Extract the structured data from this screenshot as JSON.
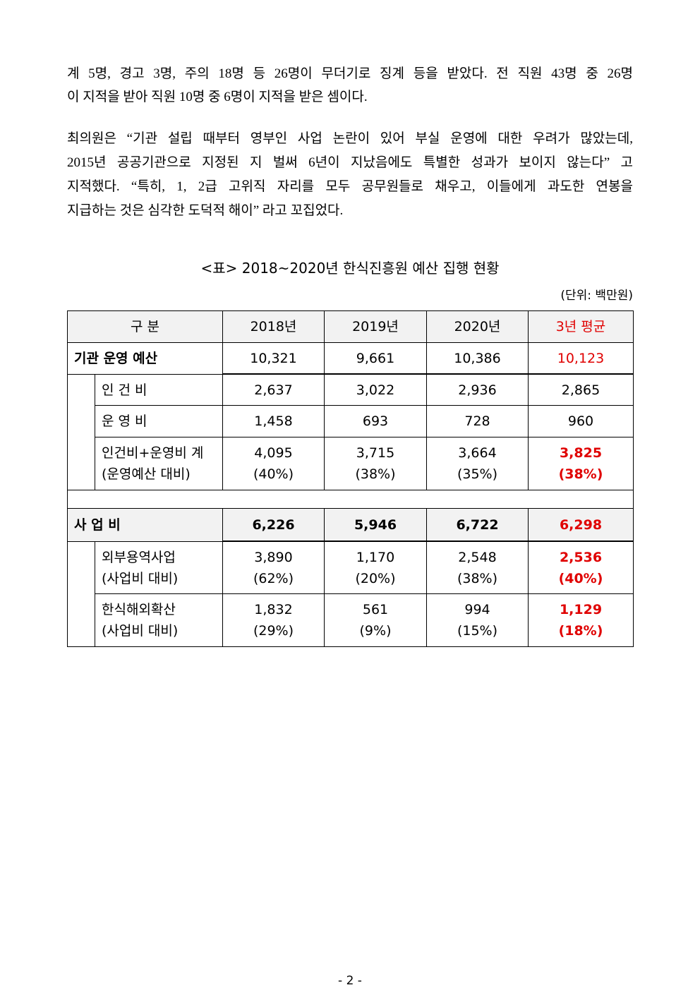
{
  "body": {
    "paragraphs": [
      {
        "lines": [
          "계 5명, 경고 3명, 주의 18명 등 26명이 무더기로 징계 등을 받았다. 전 직원 43명 중 26명",
          "이 지적을 받아 직원 10명 중 6명이 지적을 받은 셈이다."
        ]
      },
      {
        "lines": [
          "최의원은 “기관 설립 때부터 영부인 사업 논란이 있어 부실 운영에 대한 우려가 많았는데,",
          "2015년 공공기관으로 지정된 지 벌써 6년이 지났음에도 특별한 성과가 보이지 않는다” 고",
          "지적했다. “특히, 1, 2급 고위직 자리를 모두 공무원들로 채우고, 이들에게 과도한 연봉을",
          "지급하는 것은 심각한 도덕적 해이” 라고 꼬집었다."
        ]
      }
    ]
  },
  "table": {
    "caption": "<표> 2018~2020년 한식진흥원 예산 집행 현황",
    "unit": "(단위: 백만원)",
    "header": [
      "구 분",
      "2018년",
      "2019년",
      "2020년",
      "3년 평균"
    ],
    "rows": [
      {
        "label": [
          "기관 운영 예산"
        ],
        "cells": [
          [
            "10,321"
          ],
          [
            "9,661"
          ],
          [
            "10,386"
          ],
          [
            "10,123"
          ]
        ]
      },
      {
        "label": [
          "인 건 비"
        ],
        "cells": [
          [
            "2,637"
          ],
          [
            "3,022"
          ],
          [
            "2,936"
          ],
          [
            "2,865"
          ]
        ]
      },
      {
        "label": [
          "운 영 비"
        ],
        "cells": [
          [
            "1,458"
          ],
          [
            "693"
          ],
          [
            "728"
          ],
          [
            "960"
          ]
        ]
      },
      {
        "label": [
          "인건비+운영비 계",
          "(운영예산 대비)"
        ],
        "cells": [
          [
            "4,095",
            "(40%)"
          ],
          [
            "3,715",
            "(38%)"
          ],
          [
            "3,664",
            "(35%)"
          ],
          [
            "3,825",
            "(38%)"
          ]
        ]
      },
      {
        "label": [
          "사 업 비"
        ],
        "cells": [
          [
            "6,226"
          ],
          [
            "5,946"
          ],
          [
            "6,722"
          ],
          [
            "6,298"
          ]
        ]
      },
      {
        "label": [
          "외부용역사업",
          "(사업비 대비)"
        ],
        "cells": [
          [
            "3,890",
            "(62%)"
          ],
          [
            "1,170",
            "(20%)"
          ],
          [
            "2,548",
            "(38%)"
          ],
          [
            "2,536",
            "(40%)"
          ]
        ]
      },
      {
        "label": [
          "한식해외확산",
          "(사업비 대비)"
        ],
        "cells": [
          [
            "1,832",
            "(29%)"
          ],
          [
            "561",
            "(9%)"
          ],
          [
            "994",
            "(15%)"
          ],
          [
            "1,129",
            "(18%)"
          ]
        ]
      }
    ]
  },
  "footer": {
    "page": "- 2 -"
  }
}
